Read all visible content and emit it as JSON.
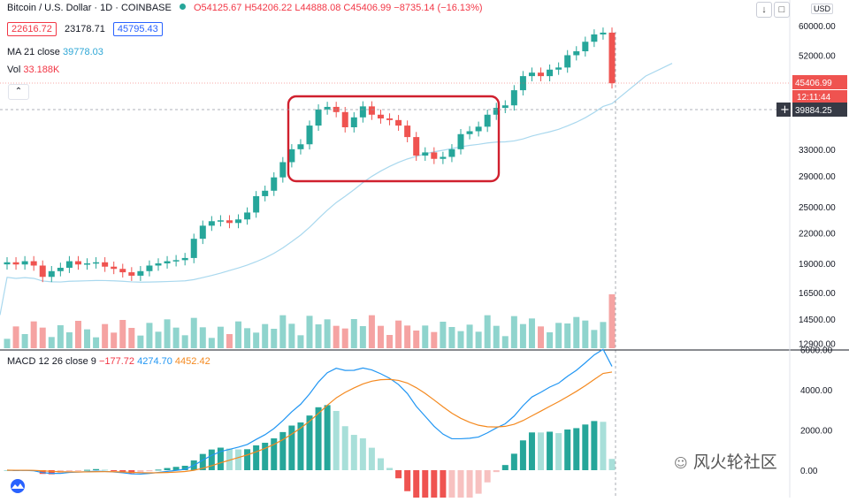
{
  "header": {
    "symbol": "Bitcoin / U.S. Dollar · 1D · COINBASE",
    "open": "O54125.67",
    "high": "H54206.22",
    "low": "L44888.08",
    "close": "C45406.99",
    "change": "−8735.14 (−16.13%)",
    "sell_price": "22616.72",
    "spread": "23178.71",
    "buy_price": "45795.43",
    "ma_label": "MA 21 close",
    "ma_value": "39778.03",
    "vol_label": "Vol",
    "vol_value": "33.188K",
    "currency": "USD",
    "collapse_icon": "chevron-up-icon",
    "tool_icons": [
      "download-arrow-icon",
      "fullscreen-icon"
    ]
  },
  "macd_legend": {
    "label": "MACD 12 26 close 9",
    "histogram": "−177.72",
    "macd": "4274.70",
    "signal": "4452.42"
  },
  "price_labels": {
    "last_price": "45406.99",
    "countdown": "12:11:44",
    "crosshair": "39884.25"
  },
  "watermark": "风火轮社区",
  "colors": {
    "up": "#26a69a",
    "down": "#ef5350",
    "ma": "#a9d8ee",
    "macd": "#2196f3",
    "signal": "#f4891f",
    "box": "#d0202e",
    "crosshair": "#9598a1"
  },
  "chart_data": {
    "type": "candlestick",
    "title": "Bitcoin / U.S. Dollar · 1D · COINBASE",
    "y_axis": {
      "ticks": [
        60000,
        52000,
        45406.99,
        39884.25,
        33000,
        29000,
        25000,
        22000,
        19000,
        16500,
        14500,
        12900
      ],
      "tick_labels": [
        "60000.00",
        "52000.00",
        "45406.99",
        "39884.25",
        "33000.00",
        "29000.00",
        "25000.00",
        "22000.00",
        "19000.00",
        "16500.00",
        "14500.00",
        "12900.00"
      ],
      "scale": "log"
    },
    "candles_close_approx": [
      19100,
      18900,
      19200,
      18800,
      17800,
      18300,
      18600,
      19200,
      18900,
      19000,
      19100,
      18700,
      18500,
      18200,
      17900,
      18300,
      18800,
      19000,
      19200,
      19300,
      19500,
      21400,
      22800,
      23300,
      23400,
      23100,
      23500,
      24300,
      26300,
      27000,
      28800,
      31000,
      33000,
      33800,
      37000,
      40000,
      40500,
      39500,
      36700,
      38500,
      40600,
      39000,
      38300,
      38000,
      37000,
      35000,
      32000,
      32500,
      31500,
      31800,
      33000,
      35500,
      36000,
      36800,
      39000,
      40300,
      40800,
      43900,
      47000,
      47800,
      47000,
      48500,
      49000,
      52000,
      53000,
      55500,
      57500,
      58000,
      45407
    ],
    "highlighted_range": "consolidation box spanning approx 29000–41000",
    "ma": {
      "name": "MA 21 close",
      "last": 39778.03
    },
    "volume": {
      "name": "Vol",
      "last": "33.188K"
    },
    "macd": {
      "name": "MACD 12 26 close 9",
      "y_ticks": [
        "6000.00",
        "4000.00",
        "2000.00",
        "0.00"
      ],
      "histogram_last": -177.72,
      "macd_last": 4274.7,
      "signal_last": 4452.42
    }
  }
}
